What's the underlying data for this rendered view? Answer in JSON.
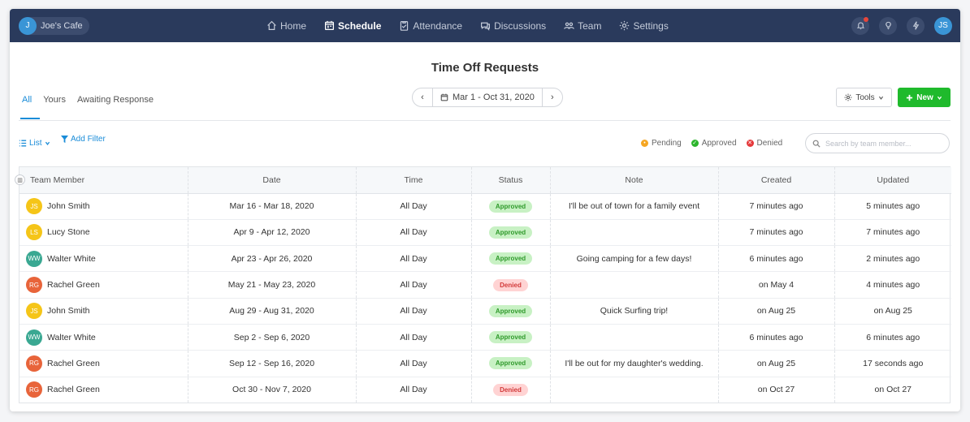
{
  "org": {
    "initial": "J",
    "name": "Joe's Cafe"
  },
  "nav": [
    {
      "label": "Home",
      "icon": "home-icon"
    },
    {
      "label": "Schedule",
      "icon": "calendar-icon"
    },
    {
      "label": "Attendance",
      "icon": "clipboard-icon"
    },
    {
      "label": "Discussions",
      "icon": "chat-icon"
    },
    {
      "label": "Team",
      "icon": "team-icon"
    },
    {
      "label": "Settings",
      "icon": "gear-icon"
    }
  ],
  "active_nav": "Schedule",
  "user": {
    "initials": "JS"
  },
  "page": {
    "title": "Time Off Requests"
  },
  "tabs": [
    {
      "label": "All"
    },
    {
      "label": "Yours"
    },
    {
      "label": "Awaiting Response"
    }
  ],
  "active_tab": "All",
  "date_range": {
    "label": "Mar 1 - Oct 31, 2020",
    "prev": "‹",
    "next": "›"
  },
  "toolbar": {
    "tools_label": "Tools",
    "new_label": "New"
  },
  "view": {
    "list_label": "List",
    "filter_label": "Add Filter"
  },
  "legend": [
    {
      "label": "Pending",
      "color": "#f5a623"
    },
    {
      "label": "Approved",
      "color": "#2cb52c"
    },
    {
      "label": "Denied",
      "color": "#e5393b"
    }
  ],
  "search": {
    "placeholder": "Search by team member..."
  },
  "table": {
    "columns": [
      "Team Member",
      "Date",
      "Time",
      "Status",
      "Note",
      "Created",
      "Updated"
    ],
    "rows": [
      {
        "initials": "JS",
        "avatar_color": "#f5c518",
        "name": "John Smith",
        "date": "Mar 16 - Mar 18, 2020",
        "time": "All Day",
        "status": "Approved",
        "status_type": "approved",
        "note": "I'll be out of town for a family event",
        "created": "7 minutes ago",
        "updated": "5 minutes ago"
      },
      {
        "initials": "LS",
        "avatar_color": "#f5c518",
        "name": "Lucy Stone",
        "date": "Apr 9 - Apr 12, 2020",
        "time": "All Day",
        "status": "Approved",
        "status_type": "approved",
        "note": "",
        "created": "7 minutes ago",
        "updated": "7 minutes ago"
      },
      {
        "initials": "WW",
        "avatar_color": "#3aa892",
        "name": "Walter White",
        "date": "Apr 23 - Apr 26, 2020",
        "time": "All Day",
        "status": "Approved",
        "status_type": "approved",
        "note": "Going camping for a few days!",
        "created": "6 minutes ago",
        "updated": "2 minutes ago"
      },
      {
        "initials": "RG",
        "avatar_color": "#e8643a",
        "name": "Rachel Green",
        "date": "May 21 - May 23, 2020",
        "time": "All Day",
        "status": "Denied",
        "status_type": "denied",
        "note": "",
        "created": "on May 4",
        "updated": "4 minutes ago"
      },
      {
        "initials": "JS",
        "avatar_color": "#f5c518",
        "name": "John Smith",
        "date": "Aug 29 - Aug 31, 2020",
        "time": "All Day",
        "status": "Approved",
        "status_type": "approved",
        "note": "Quick Surfing trip!",
        "created": "on Aug 25",
        "updated": "on Aug 25"
      },
      {
        "initials": "WW",
        "avatar_color": "#3aa892",
        "name": "Walter White",
        "date": "Sep 2 - Sep 6, 2020",
        "time": "All Day",
        "status": "Approved",
        "status_type": "approved",
        "note": "",
        "created": "6 minutes ago",
        "updated": "6 minutes ago"
      },
      {
        "initials": "RG",
        "avatar_color": "#e8643a",
        "name": "Rachel Green",
        "date": "Sep 12 - Sep 16, 2020",
        "time": "All Day",
        "status": "Approved",
        "status_type": "approved",
        "note": "I'll be out for my daughter's wedding.",
        "created": "on Aug 25",
        "updated": "17 seconds ago"
      },
      {
        "initials": "RG",
        "avatar_color": "#e8643a",
        "name": "Rachel Green",
        "date": "Oct 30 - Nov 7, 2020",
        "time": "All Day",
        "status": "Denied",
        "status_type": "denied",
        "note": "",
        "created": "on Oct 27",
        "updated": "on Oct 27"
      }
    ]
  }
}
